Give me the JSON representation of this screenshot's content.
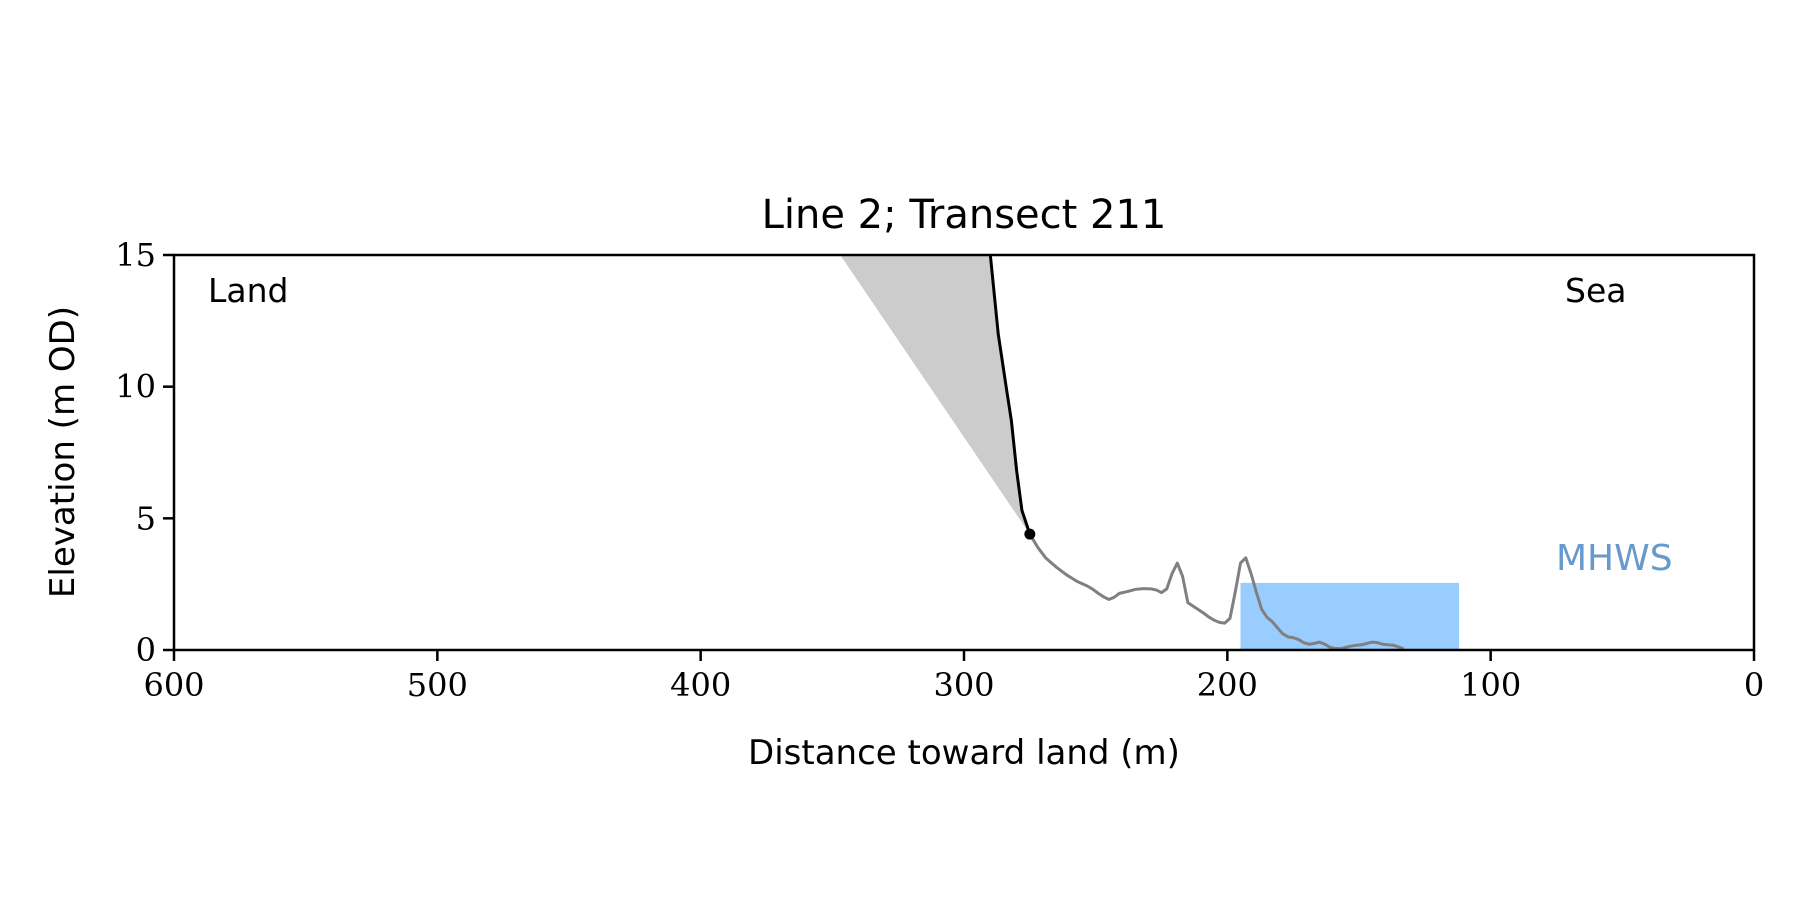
{
  "chart_data": {
    "type": "line",
    "title": "Line 2; Transect 211",
    "xlabel": "Distance toward land (m)",
    "ylabel": "Elevation (m OD)",
    "xlim": [
      600,
      0
    ],
    "ylim": [
      0,
      15
    ],
    "x_inverted": true,
    "x_ticks": [
      600,
      500,
      400,
      300,
      200,
      100,
      0
    ],
    "y_ticks": [
      0,
      5,
      10,
      15
    ],
    "grid": false,
    "annotations": {
      "land": "Land",
      "sea": "Sea",
      "mhws": "MHWS"
    },
    "colors": {
      "profile": "#808080",
      "cliff": "#000000",
      "wedge": "#cccccc",
      "mhws_fill": "#99ccff",
      "mhws_text": "#6699cc"
    },
    "cliff_toe": [
      275,
      4.4
    ],
    "cliff_top_projection": [
      347,
      15
    ],
    "cliff_line": [
      [
        290,
        15
      ],
      [
        287,
        12
      ],
      [
        284,
        10
      ],
      [
        282,
        8.7
      ],
      [
        280,
        6.8
      ],
      [
        278,
        5.3
      ],
      [
        275,
        4.4
      ]
    ],
    "profile": [
      [
        275,
        4.4
      ],
      [
        272,
        3.9
      ],
      [
        269,
        3.5
      ],
      [
        265,
        3.15
      ],
      [
        261,
        2.85
      ],
      [
        257,
        2.6
      ],
      [
        253,
        2.42
      ],
      [
        251,
        2.3
      ],
      [
        249,
        2.15
      ],
      [
        247,
        2.02
      ],
      [
        245,
        1.92
      ],
      [
        243,
        2.0
      ],
      [
        241,
        2.15
      ],
      [
        238,
        2.22
      ],
      [
        235,
        2.3
      ],
      [
        232,
        2.33
      ],
      [
        229,
        2.32
      ],
      [
        227,
        2.28
      ],
      [
        225,
        2.18
      ],
      [
        223,
        2.32
      ],
      [
        221,
        2.9
      ],
      [
        219,
        3.3
      ],
      [
        217,
        2.8
      ],
      [
        215,
        1.8
      ],
      [
        212,
        1.6
      ],
      [
        209,
        1.4
      ],
      [
        207,
        1.25
      ],
      [
        205,
        1.13
      ],
      [
        203,
        1.05
      ],
      [
        201,
        1.02
      ],
      [
        199,
        1.2
      ],
      [
        197,
        2.2
      ],
      [
        195,
        3.3
      ],
      [
        193,
        3.5
      ],
      [
        191,
        2.9
      ],
      [
        189,
        2.2
      ],
      [
        187,
        1.55
      ],
      [
        185,
        1.25
      ],
      [
        183,
        1.08
      ],
      [
        181,
        0.85
      ],
      [
        179,
        0.62
      ],
      [
        177,
        0.5
      ],
      [
        175,
        0.47
      ],
      [
        173,
        0.4
      ],
      [
        171,
        0.28
      ],
      [
        169,
        0.22
      ],
      [
        167,
        0.25
      ],
      [
        165,
        0.3
      ],
      [
        163,
        0.22
      ],
      [
        161,
        0.1
      ],
      [
        159,
        0.06
      ],
      [
        157,
        0.05
      ],
      [
        155,
        0.1
      ],
      [
        153,
        0.15
      ],
      [
        151,
        0.18
      ],
      [
        149,
        0.2
      ],
      [
        147,
        0.25
      ],
      [
        145,
        0.3
      ],
      [
        143,
        0.28
      ],
      [
        141,
        0.22
      ],
      [
        139,
        0.2
      ],
      [
        137,
        0.18
      ],
      [
        135,
        0.12
      ],
      [
        133,
        0.04
      ]
    ],
    "mhws_rect": {
      "x_from": 195,
      "x_to": 112,
      "y_from": 0,
      "y_to": 2.55
    }
  }
}
